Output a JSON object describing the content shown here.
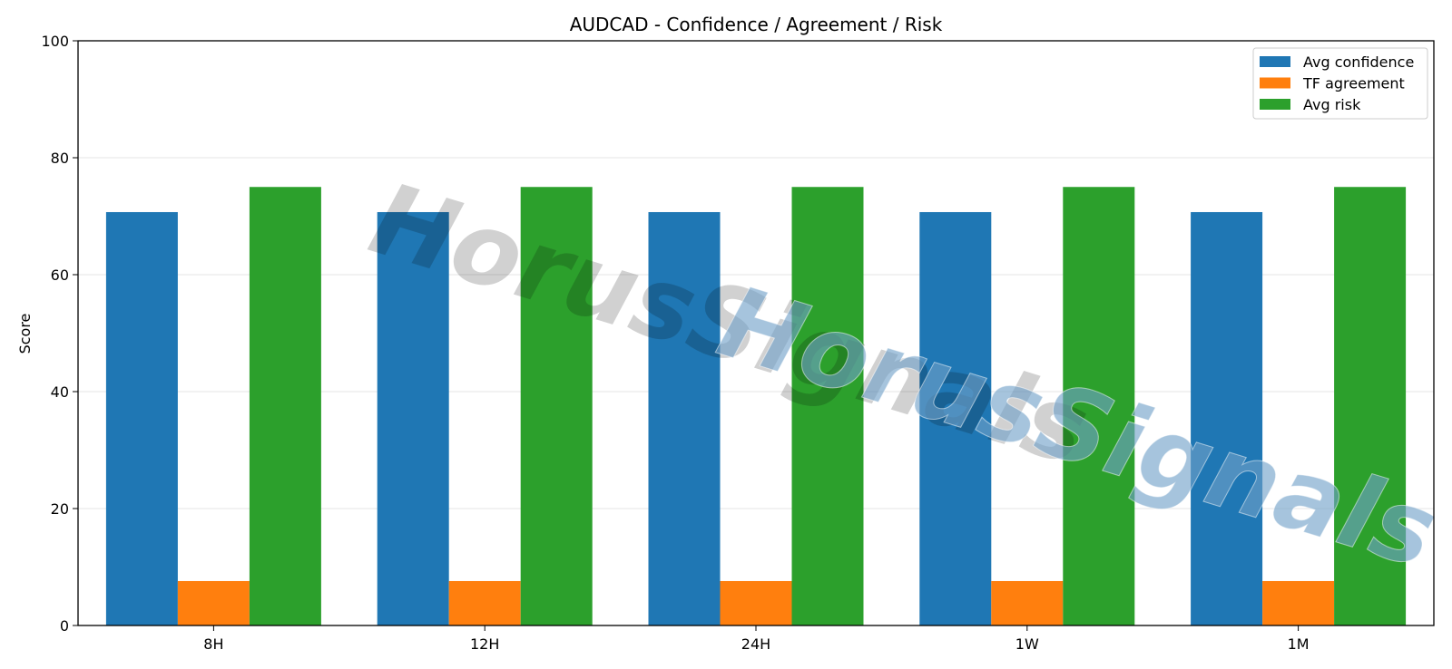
{
  "chart_data": {
    "type": "bar",
    "title": "AUDCAD - Confidence / Agreement / Risk",
    "xlabel": "",
    "ylabel": "Score",
    "ylim": [
      0,
      100
    ],
    "yticks": [
      0,
      20,
      40,
      60,
      80,
      100
    ],
    "grid": "y",
    "legend_position": "top-right",
    "categories": [
      "8H",
      "12H",
      "24H",
      "1W",
      "1M"
    ],
    "series": [
      {
        "name": "Avg confidence",
        "color": "#1f77b4",
        "values": [
          70.7,
          70.7,
          70.7,
          70.7,
          70.7
        ]
      },
      {
        "name": "TF agreement",
        "color": "#ff7f0e",
        "values": [
          7.6,
          7.6,
          7.6,
          7.6,
          7.6
        ]
      },
      {
        "name": "Avg risk",
        "color": "#2ca02c",
        "values": [
          75,
          75,
          75,
          75,
          75
        ]
      }
    ]
  },
  "watermark": {
    "text": "HorusSignals"
  }
}
